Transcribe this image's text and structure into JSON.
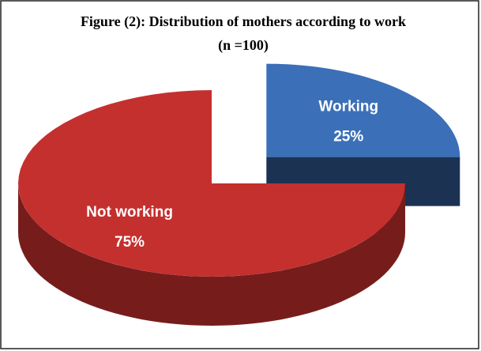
{
  "chart_data": {
    "type": "pie",
    "title": "Figure (2): Distribution of mothers according to work",
    "subtitle": "(n =100)",
    "categories": [
      "Working",
      "Not working"
    ],
    "values": [
      25,
      75
    ],
    "value_labels": [
      "25%",
      "75%"
    ],
    "colors": [
      "#3b70b8",
      "#c4302e"
    ]
  }
}
